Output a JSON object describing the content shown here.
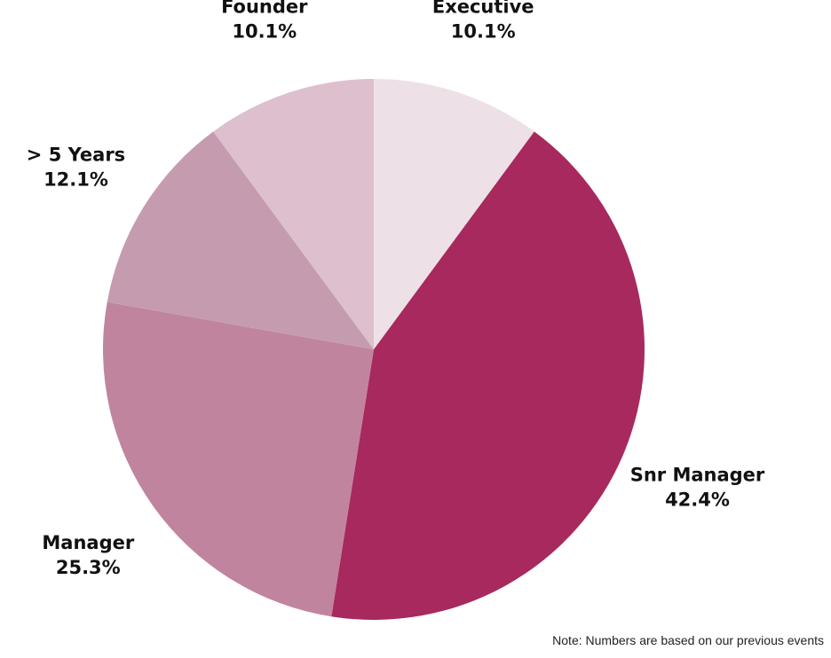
{
  "chart_data": {
    "type": "pie",
    "title": "",
    "start": "top",
    "direction": "clockwise",
    "slices": [
      {
        "name": "Executive",
        "value": 10.1,
        "value_label": "10.1%",
        "color": "#EEE0E7"
      },
      {
        "name": "Snr Manager",
        "value": 42.4,
        "value_label": "42.4%",
        "color": "#A7295D"
      },
      {
        "name": "Manager",
        "value": 25.3,
        "value_label": "25.3%",
        "color": "#C0849F"
      },
      {
        "name": "> 5 Years",
        "value": 12.1,
        "value_label": "12.1%",
        "color": "#C59CAF"
      },
      {
        "name": "Founder",
        "value": 10.1,
        "value_label": "10.1%",
        "color": "#DDBFCD"
      }
    ]
  },
  "note": "Note: Numbers are based on our previous events"
}
